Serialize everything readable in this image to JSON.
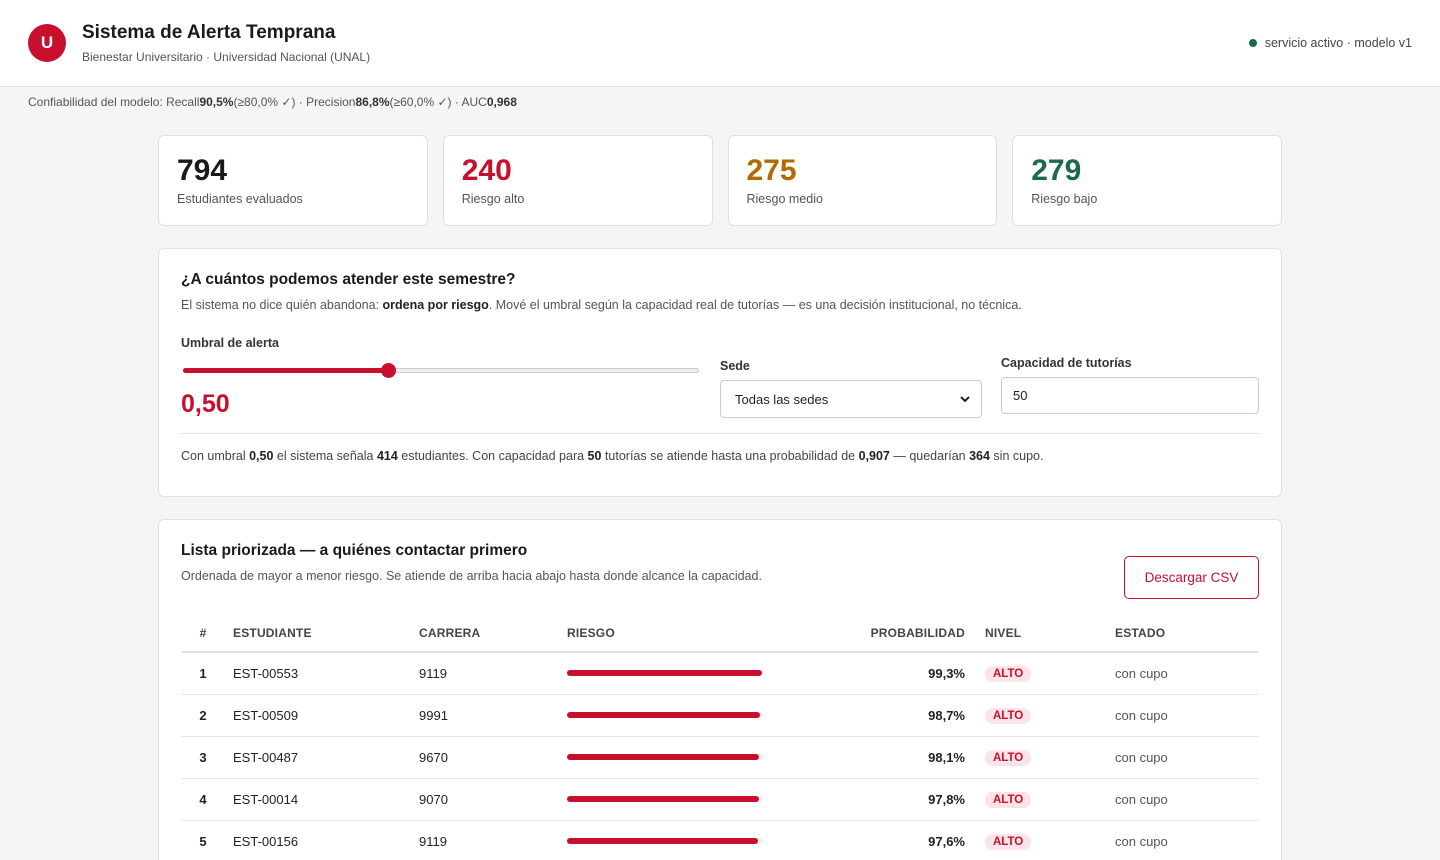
{
  "header": {
    "logo_letter": "U",
    "title": "Sistema de Alerta Temprana",
    "subtitle": "Bienestar Universitario · Universidad Nacional (UNAL)",
    "status": "servicio activo · modelo v1",
    "status_color": "#1b6b4b"
  },
  "confidence": {
    "prefix": "Confiabilidad del modelo: Recall ",
    "recall": "90,5%",
    "recall_ref": " (≥80,0% ✓) · Precision ",
    "precision": "86,8%",
    "precision_ref": " (≥60,0% ✓) · AUC ",
    "auc": "0,968"
  },
  "kpis": [
    {
      "value": "794",
      "label": "Estudiantes evaluados",
      "color": "#1a1a1a"
    },
    {
      "value": "240",
      "label": "Riesgo alto",
      "color": "#c8102e"
    },
    {
      "value": "275",
      "label": "Riesgo medio",
      "color": "#b06a00"
    },
    {
      "value": "279",
      "label": "Riesgo bajo",
      "color": "#1b6b4b"
    }
  ],
  "capacity": {
    "title": "¿A cuántos podemos atender este semestre?",
    "desc_a": "El sistema no dice quién abandona: ",
    "desc_b": "ordena por riesgo",
    "desc_c": ". Mové el umbral según la capacidad real de tutorías — es una decisión institucional, no técnica.",
    "threshold_label": "Umbral de alerta",
    "threshold_value": "0,50",
    "threshold_fraction": 0.4,
    "sede_label": "Sede",
    "sede_value": "Todas las sedes",
    "cap_label": "Capacidad de tutorías",
    "cap_value": "50",
    "summary": {
      "t1": "Con umbral ",
      "umbral": "0,50",
      "t2": " el sistema señala ",
      "senala": "414",
      "t3": " estudiantes. Con capacidad para ",
      "cap": "50",
      "t4": " tutorías se atiende hasta una probabilidad de ",
      "prob": "0,907",
      "t5": " — quedarían ",
      "sin": "364",
      "t6": " sin cupo."
    }
  },
  "list": {
    "title": "Lista priorizada — a quiénes contactar primero",
    "desc": "Ordenada de mayor a menor riesgo. Se atiende de arriba hacia abajo hasta donde alcance la capacidad.",
    "download": "Descargar CSV",
    "columns": {
      "idx": "#",
      "est": "ESTUDIANTE",
      "car": "CARRERA",
      "risk": "RIESGO",
      "prob": "PROBABILIDAD",
      "niv": "NIVEL",
      "estado": "ESTADO"
    },
    "rows": [
      {
        "idx": "1",
        "est": "EST-00553",
        "car": "9119",
        "risk": 0.993,
        "prob": "99,3%",
        "niv": "ALTO",
        "estado": "con cupo"
      },
      {
        "idx": "2",
        "est": "EST-00509",
        "car": "9991",
        "risk": 0.987,
        "prob": "98,7%",
        "niv": "ALTO",
        "estado": "con cupo"
      },
      {
        "idx": "3",
        "est": "EST-00487",
        "car": "9670",
        "risk": 0.981,
        "prob": "98,1%",
        "niv": "ALTO",
        "estado": "con cupo"
      },
      {
        "idx": "4",
        "est": "EST-00014",
        "car": "9070",
        "risk": 0.978,
        "prob": "97,8%",
        "niv": "ALTO",
        "estado": "con cupo"
      },
      {
        "idx": "5",
        "est": "EST-00156",
        "car": "9119",
        "risk": 0.976,
        "prob": "97,6%",
        "niv": "ALTO",
        "estado": "con cupo"
      }
    ]
  }
}
